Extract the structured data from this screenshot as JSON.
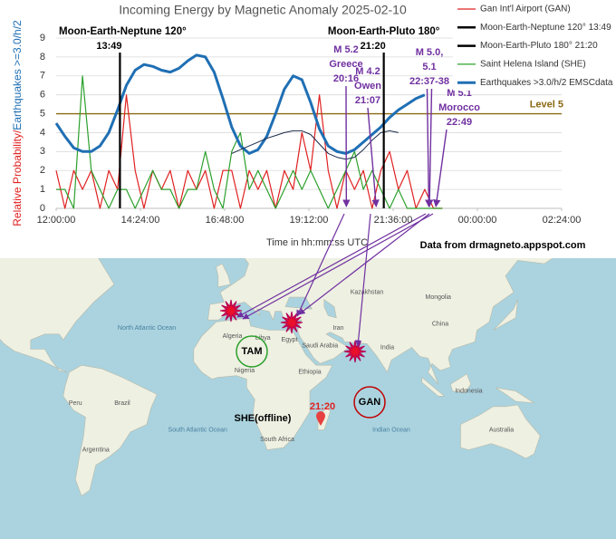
{
  "chart_data": {
    "type": "line",
    "title": "Incoming Energy by Magnetic Anomaly 2025-02-10",
    "xlabel": "Time in hh:mm:ss UTC",
    "ylabel": [
      "Relative Probability/",
      "Earthquakes >=3.0/h/2"
    ],
    "ylabel_colors": [
      "#e02020",
      "#1f6fb4"
    ],
    "source": "Data from drmagneto.appspot.com",
    "xlim": [
      12,
      26.4
    ],
    "xticks": [
      {
        "value": 12,
        "label": "12:00:00"
      },
      {
        "value": 14.4,
        "label": "14:24:00"
      },
      {
        "value": 16.8,
        "label": "16:48:00"
      },
      {
        "value": 19.2,
        "label": "19:12:00"
      },
      {
        "value": 21.6,
        "label": "21:36:00"
      },
      {
        "value": 24,
        "label": "00:00:00"
      },
      {
        "value": 26.4,
        "label": "02:24:00"
      }
    ],
    "ylim": [
      0,
      9
    ],
    "yticks": [
      0,
      1,
      2,
      3,
      4,
      5,
      6,
      7,
      8,
      9
    ],
    "grid": true,
    "x": [
      12,
      12.25,
      12.5,
      12.75,
      13,
      13.25,
      13.5,
      13.75,
      14,
      14.25,
      14.5,
      14.75,
      15,
      15.25,
      15.5,
      15.75,
      16,
      16.25,
      16.5,
      16.75,
      17,
      17.25,
      17.5,
      17.75,
      18,
      18.25,
      18.5,
      18.75,
      19,
      19.25,
      19.5,
      19.75,
      20,
      20.25,
      20.5,
      20.75,
      21,
      21.25,
      21.5,
      21.75,
      22,
      22.25,
      22.5,
      22.75,
      23
    ],
    "series": [
      {
        "name": "Gan Int'l Airport (GAN)",
        "color": "#e02020",
        "width": 1.2,
        "values": [
          2,
          0,
          2,
          1,
          2,
          0,
          2,
          1,
          6,
          2,
          0,
          2,
          1,
          2,
          0,
          2,
          1,
          2,
          0,
          2,
          2,
          0,
          2,
          1,
          2,
          0,
          2,
          1,
          4,
          2,
          6,
          2,
          0,
          2,
          1,
          2,
          0,
          2,
          3,
          1,
          2,
          0,
          1,
          0,
          0
        ]
      },
      {
        "name": "Saint Helena Island (SHE)",
        "color": "#2ca02c",
        "width": 1.2,
        "values": [
          1,
          1,
          0,
          7,
          2,
          1,
          0,
          1,
          1,
          0,
          1,
          2,
          1,
          1,
          0,
          1,
          1,
          3,
          1,
          0,
          3,
          4,
          1,
          2,
          1,
          0,
          1,
          2,
          1,
          2,
          1,
          0,
          1,
          2,
          3,
          1,
          2,
          1,
          0,
          1,
          0,
          0,
          0,
          0,
          0
        ]
      },
      {
        "name": "Earthquakes >3.0/h/2 EMSCdata",
        "color": "#1f6fb4",
        "width": 3,
        "values": [
          4.5,
          3.8,
          3.2,
          3.0,
          3.0,
          3.3,
          4.0,
          5.2,
          6.5,
          7.3,
          7.6,
          7.5,
          7.3,
          7.2,
          7.4,
          7.8,
          8.1,
          8.0,
          7.2,
          5.8,
          4.3,
          3.3,
          2.9,
          3.1,
          3.8,
          5.0,
          6.3,
          7.0,
          6.8,
          5.6,
          4.2,
          3.3,
          3.0,
          2.9,
          3.1,
          3.5,
          3.9,
          4.3,
          4.8,
          5.2,
          5.5,
          5.8,
          6.0,
          null,
          null
        ]
      },
      {
        "color": "#1a2a4a",
        "width": 1,
        "values": [
          null,
          null,
          null,
          null,
          null,
          null,
          null,
          null,
          null,
          null,
          null,
          null,
          null,
          null,
          null,
          null,
          null,
          null,
          null,
          null,
          2.9,
          3.1,
          3.3,
          3.5,
          3.7,
          3.85,
          4.0,
          4.1,
          4.1,
          3.9,
          3.4,
          2.9,
          2.7,
          2.6,
          2.7,
          3.1,
          3.6,
          4.0,
          4.1,
          4.0,
          null,
          null,
          null,
          null,
          null
        ]
      }
    ],
    "events": [
      {
        "name": "Moon-Earth-Neptune 120° 13:49",
        "label": "Moon-Earth-Neptune 120°",
        "time": "13:49",
        "x": 13.817,
        "color": "#000000"
      },
      {
        "name": "Moon-Earth-Pluto 180° 21:20",
        "label": "Moon-Earth-Pluto 180°",
        "time": "21:20",
        "x": 21.333,
        "color": "#000000"
      }
    ],
    "reference_lines": [
      {
        "value": 5,
        "label": "Level 5",
        "color": "#8b6914"
      }
    ],
    "quakes": [
      {
        "lines": [
          "M 5.2",
          "Greece",
          "20:16"
        ],
        "x": [
          20.267
        ]
      },
      {
        "lines": [
          "M 4.2",
          "Owen",
          "21:07"
        ],
        "x": [
          21.117
        ]
      },
      {
        "lines": [
          "M 5.0,",
          "5.1",
          "22:37-38"
        ],
        "x": [
          22.617,
          22.633
        ]
      },
      {
        "lines": [
          "M 5.1",
          "Morocco",
          "22:49"
        ],
        "x": [
          22.817
        ]
      }
    ],
    "annotation_color": "#7030a0",
    "map": {
      "labels": [
        "North Atlantic Ocean",
        "South Atlantic Ocean",
        "Indian Ocean",
        "Brazil",
        "Argentina",
        "Peru",
        "Algeria",
        "Libya",
        "Egypt",
        "Nigeria",
        "Ethiopia",
        "South Africa",
        "Saudi Arabia",
        "Iran",
        "Kazakhstan",
        "Mongolia",
        "China",
        "India",
        "Indonesia",
        "Australia"
      ],
      "markers": [
        "TAM",
        "GAN"
      ],
      "marker_colors": [
        "#2ca02c",
        "#c00000"
      ],
      "station_note": "SHE(offline)",
      "time_note": "21:20"
    }
  }
}
